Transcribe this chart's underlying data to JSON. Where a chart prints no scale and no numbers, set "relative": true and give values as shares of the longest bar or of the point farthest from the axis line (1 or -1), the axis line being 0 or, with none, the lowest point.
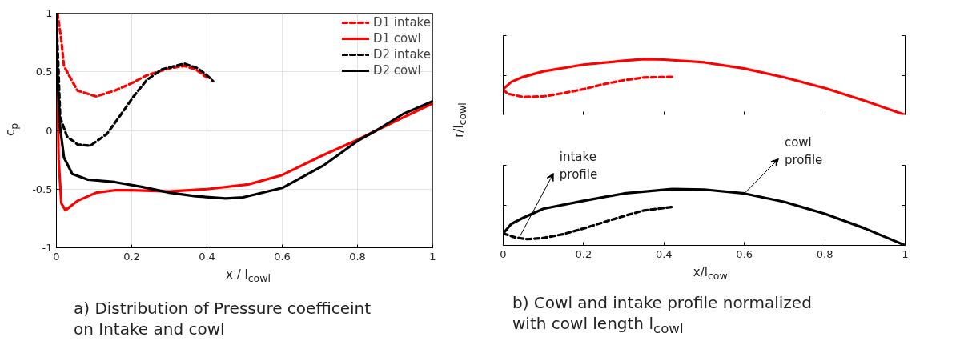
{
  "chart_data": [
    {
      "type": "line",
      "title": "a)  Distribution of Pressure coefficeint\non Intake and cowl",
      "xlabel": "x / l$_{cowl}$",
      "ylabel": "c$_{p}$",
      "xlim": [
        0,
        1
      ],
      "ylim": [
        -1,
        1
      ],
      "xticks": [
        0,
        0.2,
        0.4,
        0.6,
        0.8,
        1
      ],
      "yticks": [
        -1,
        -0.5,
        0,
        0.5,
        1
      ],
      "grid": true,
      "legend": "top right",
      "series": [
        {
          "name": "D1 intake",
          "color": "#ff0000",
          "line_style": "dashed",
          "x": [
            0.003,
            0.013,
            0.02,
            0.035,
            0.056,
            0.106,
            0.155,
            0.198,
            0.24,
            0.3,
            0.34,
            0.37,
            0.4
          ],
          "values": [
            1,
            0.77,
            0.55,
            0.46,
            0.34,
            0.29,
            0.34,
            0.4,
            0.47,
            0.53,
            0.55,
            0.52,
            0.45
          ]
        },
        {
          "name": "D1 cowl",
          "color": "#ff0000",
          "line_style": "solid",
          "x": [
            0,
            0.006,
            0.013,
            0.024,
            0.056,
            0.106,
            0.155,
            0.2,
            0.3,
            0.4,
            0.51,
            0.6,
            0.709,
            0.8,
            0.85,
            0.921,
            1
          ],
          "values": [
            1,
            -0.25,
            -0.62,
            -0.68,
            -0.6,
            -0.53,
            -0.51,
            -0.51,
            -0.52,
            -0.5,
            -0.46,
            -0.38,
            -0.21,
            -0.08,
            0,
            0.11,
            0.23
          ]
        },
        {
          "name": "D2 intake",
          "color": "#000000",
          "line_style": "dashed",
          "x": [
            0,
            0.01,
            0.028,
            0.056,
            0.09,
            0.134,
            0.17,
            0.205,
            0.24,
            0.28,
            0.34,
            0.375,
            0.4,
            0.416
          ],
          "values": [
            1,
            0.11,
            -0.05,
            -0.12,
            -0.13,
            -0.03,
            0.13,
            0.29,
            0.43,
            0.52,
            0.57,
            0.53,
            0.47,
            0.42
          ]
        },
        {
          "name": "D2 cowl",
          "color": "#000000",
          "line_style": "solid",
          "x": [
            0,
            0.003,
            0.01,
            0.02,
            0.042,
            0.084,
            0.155,
            0.226,
            0.3,
            0.37,
            0.45,
            0.496,
            0.6,
            0.709,
            0.8,
            0.85,
            0.921,
            1
          ],
          "values": [
            1,
            0.43,
            0.02,
            -0.23,
            -0.37,
            -0.42,
            -0.44,
            -0.48,
            -0.53,
            -0.56,
            -0.58,
            -0.57,
            -0.49,
            -0.3,
            -0.09,
            0,
            0.14,
            0.25
          ]
        }
      ]
    },
    {
      "type": "line",
      "relative": true,
      "ylabel": "r/l$_{cowl}$",
      "xlim": [
        0,
        1
      ],
      "tick_labels": false,
      "series": [
        {
          "color": "#ff0000",
          "line_style": "solid",
          "x": [
            0,
            0.02,
            0.05,
            0.1,
            0.2,
            0.3,
            0.35,
            0.4,
            0.5,
            0.6,
            0.7,
            0.8,
            0.9,
            1
          ],
          "values": [
            0.46,
            0.59,
            0.68,
            0.78,
            0.9,
            0.97,
            1,
            0.99,
            0.94,
            0.83,
            0.67,
            0.48,
            0.25,
            0
          ]
        },
        {
          "color": "#ff0000",
          "line_style": "dashed",
          "x": [
            0,
            0.01,
            0.05,
            0.1,
            0.15,
            0.2,
            0.25,
            0.3,
            0.35,
            0.42
          ],
          "values": [
            0.46,
            0.38,
            0.32,
            0.33,
            0.39,
            0.46,
            0.55,
            0.62,
            0.67,
            0.68
          ]
        }
      ]
    },
    {
      "type": "line",
      "relative": true,
      "title": "b)  Cowl and intake profile normalized\nwith cowl length l$_{cowl}$",
      "xlabel": "x/l$_{cowl}$",
      "xlim": [
        0,
        1
      ],
      "xticks": [
        0,
        0.2,
        0.4,
        0.6,
        0.8,
        1
      ],
      "tick_labels": "x",
      "annotations": [
        {
          "text": "intake\nprofile",
          "x": 0.04,
          "y": 0.14
        },
        {
          "text": "cowl\nprofile",
          "x": 0.6,
          "y": 0.92
        }
      ],
      "series": [
        {
          "color": "#000000",
          "line_style": "solid",
          "x": [
            0,
            0.02,
            0.05,
            0.1,
            0.2,
            0.3,
            0.42,
            0.5,
            0.6,
            0.7,
            0.8,
            0.9,
            1
          ],
          "values": [
            0.21,
            0.38,
            0.49,
            0.65,
            0.79,
            0.92,
            1,
            0.99,
            0.92,
            0.77,
            0.56,
            0.3,
            0
          ]
        },
        {
          "color": "#000000",
          "line_style": "dashed",
          "x": [
            0,
            0.03,
            0.06,
            0.1,
            0.15,
            0.2,
            0.25,
            0.3,
            0.35,
            0.42
          ],
          "values": [
            0.21,
            0.14,
            0.11,
            0.13,
            0.2,
            0.3,
            0.41,
            0.52,
            0.62,
            0.68
          ]
        }
      ]
    }
  ]
}
